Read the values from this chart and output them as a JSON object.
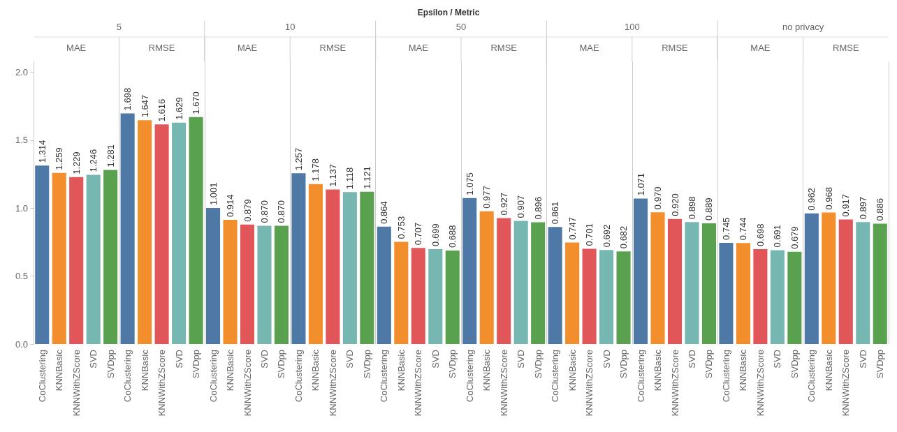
{
  "chart_data": {
    "type": "bar",
    "title": "Epsilon / Metric",
    "annotations": [
      "5",
      "10",
      "50",
      "100",
      "no privacy",
      "MAE",
      "RMSE",
      "MAE",
      "RMSE",
      "MAE",
      "RMSE",
      "MAE",
      "RMSE",
      "MAE",
      "RMSE"
    ],
    "categories": [
      "CoClustering",
      "KNNBasic",
      "KNNWithZScore",
      "SVD",
      "SVDpp",
      "CoClustering",
      "KNNBasic",
      "KNNWithZScore",
      "SVD",
      "SVDpp",
      "CoClustering",
      "KNNBasic",
      "KNNWithZScore",
      "SVD",
      "SVDpp",
      "CoClustering",
      "KNNBasic",
      "KNNWithZScore",
      "SVD",
      "SVDpp",
      "CoClustering",
      "KNNBasic",
      "KNNWithZScore",
      "SVD",
      "SVDpp",
      "CoClustering",
      "KNNBasic",
      "KNNWithZScore",
      "SVD",
      "SVDpp",
      "CoClustering",
      "KNNBasic",
      "KNNWithZScore",
      "SVD",
      "SVDpp",
      "CoClustering",
      "KNNBasic",
      "KNNWithZScore",
      "SVD",
      "SVDpp",
      "CoClustering",
      "KNNBasic",
      "KNNWithZScore",
      "SVD",
      "SVDpp",
      "CoClustering",
      "KNNBasic",
      "KNNWithZScore",
      "SVD",
      "SVDpp"
    ],
    "values": [
      1.314,
      1.259,
      1.229,
      1.246,
      1.281,
      1.698,
      1.647,
      1.616,
      1.629,
      1.67,
      1.001,
      0.914,
      0.879,
      0.87,
      0.87,
      1.257,
      1.178,
      1.137,
      1.118,
      1.121,
      0.864,
      0.753,
      0.707,
      0.699,
      0.688,
      1.075,
      0.977,
      0.927,
      0.907,
      0.896,
      0.861,
      0.747,
      0.701,
      0.692,
      0.682,
      1.071,
      0.97,
      0.92,
      0.898,
      0.889,
      0.745,
      0.744,
      0.698,
      0.691,
      0.679,
      0.962,
      0.968,
      0.917,
      0.897,
      0.886
    ],
    "value_labels": [
      "1.314",
      "1.259",
      "1.229",
      "1.246",
      "1.281",
      "1.698",
      "1.647",
      "1.616",
      "1.629",
      "1.670",
      "1.001",
      "0.914",
      "0.879",
      "0.870",
      "0.870",
      "1.257",
      "1.178",
      "1.137",
      "1.118",
      "1.121",
      "0.864",
      "0.753",
      "0.707",
      "0.699",
      "0.688",
      "1.075",
      "0.977",
      "0.927",
      "0.907",
      "0.896",
      "0.861",
      "0.747",
      "0.701",
      "0.692",
      "0.682",
      "1.071",
      "0.970",
      "0.920",
      "0.898",
      "0.889",
      "0.745",
      "0.744",
      "0.698",
      "0.691",
      "0.679",
      "0.962",
      "0.968",
      "0.917",
      "0.897",
      "0.886"
    ],
    "colors": [
      "#4e79a7",
      "#f28e2b",
      "#e15759",
      "#76b7b2",
      "#59a14f",
      "#4e79a7",
      "#f28e2b",
      "#e15759",
      "#76b7b2",
      "#59a14f",
      "#4e79a7",
      "#f28e2b",
      "#e15759",
      "#76b7b2",
      "#59a14f",
      "#4e79a7",
      "#f28e2b",
      "#e15759",
      "#76b7b2",
      "#59a14f",
      "#4e79a7",
      "#f28e2b",
      "#e15759",
      "#76b7b2",
      "#59a14f",
      "#4e79a7",
      "#f28e2b",
      "#e15759",
      "#76b7b2",
      "#59a14f",
      "#4e79a7",
      "#f28e2b",
      "#e15759",
      "#76b7b2",
      "#59a14f",
      "#4e79a7",
      "#f28e2b",
      "#e15759",
      "#76b7b2",
      "#59a14f",
      "#4e79a7",
      "#f28e2b",
      "#e15759",
      "#76b7b2",
      "#59a14f",
      "#4e79a7",
      "#f28e2b",
      "#e15759",
      "#76b7b2",
      "#59a14f"
    ],
    "ylim": [
      0,
      2.08
    ],
    "yticks": [
      {
        "value": 0,
        "label": "0.0"
      },
      {
        "value": 0.5,
        "label": "0.5"
      },
      {
        "value": 1,
        "label": "1.0"
      },
      {
        "value": 1.5,
        "label": "1.5"
      },
      {
        "value": 2,
        "label": "2.0"
      }
    ],
    "grid": false
  }
}
